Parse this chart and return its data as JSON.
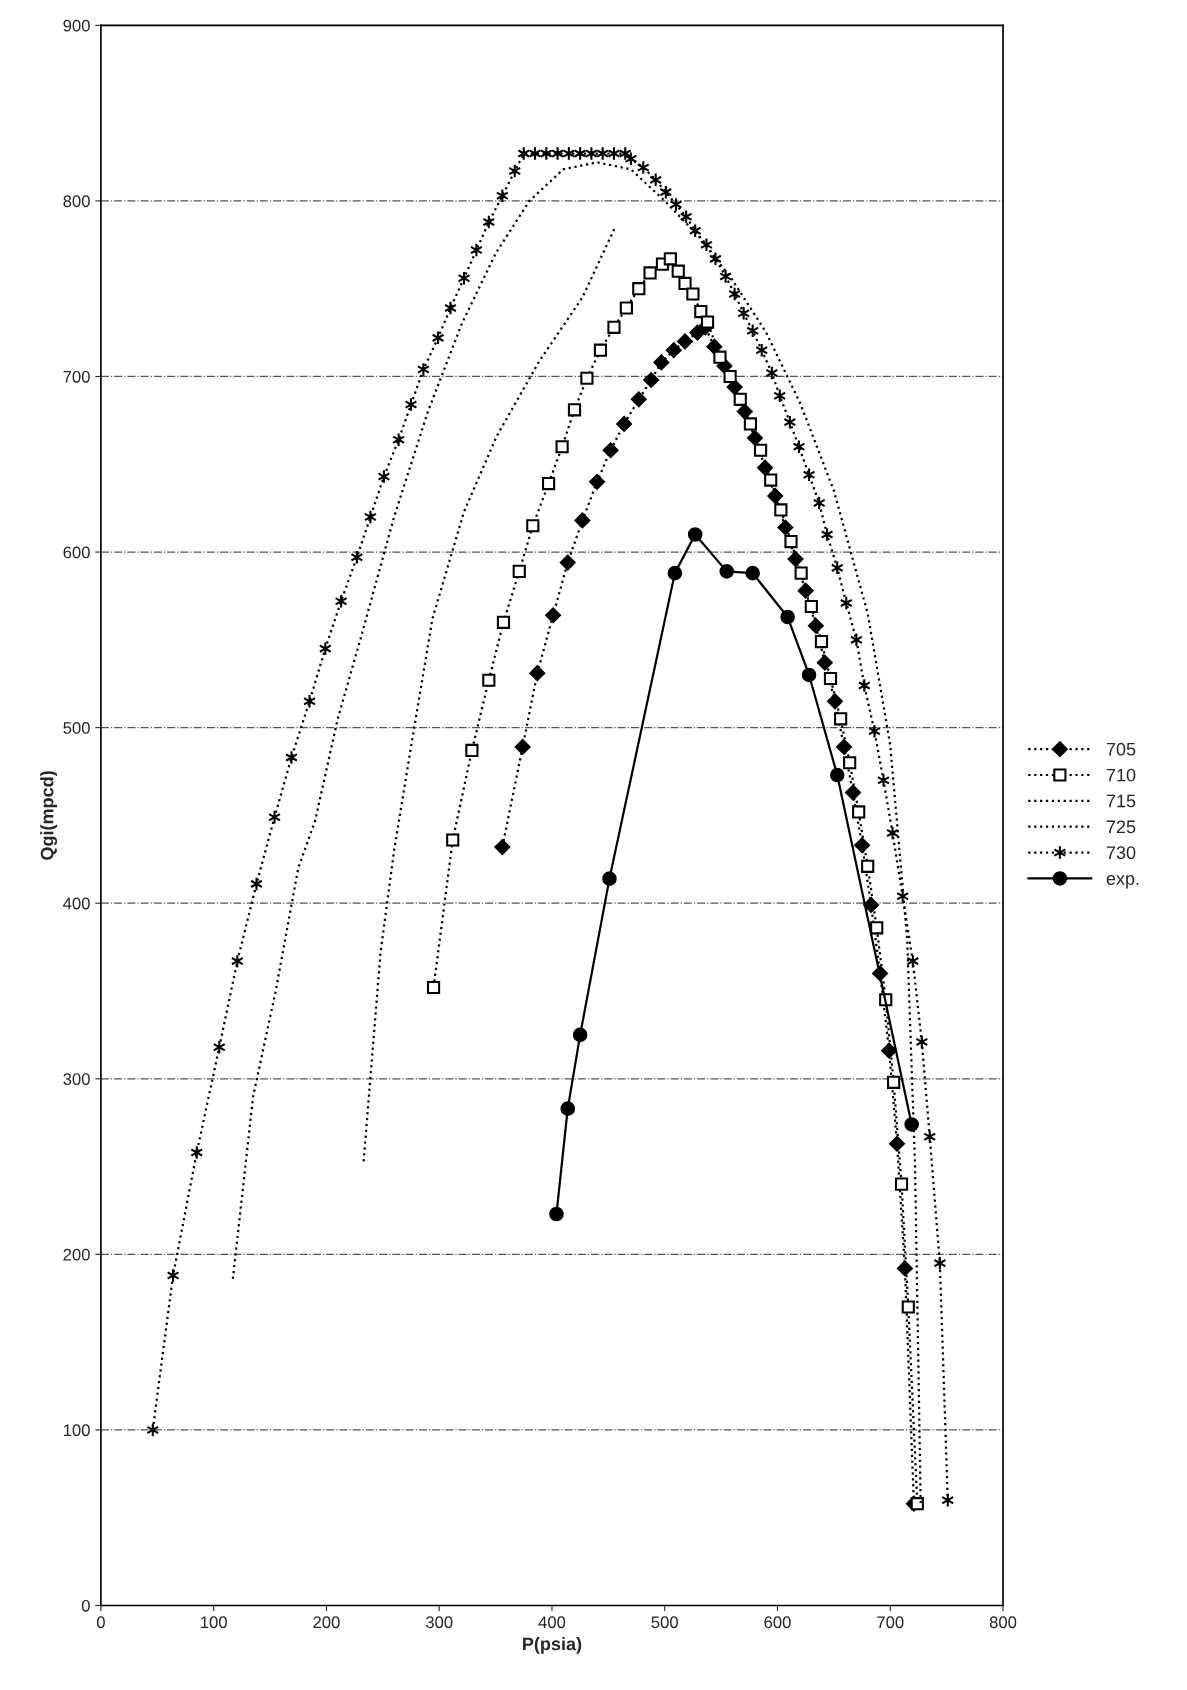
{
  "chart_data": {
    "type": "line",
    "xlabel": "P(psia)",
    "ylabel": "Qgi(mpcd)",
    "xlim": [
      0,
      800
    ],
    "xticks": [
      0,
      100,
      200,
      300,
      400,
      500,
      600,
      700,
      800
    ],
    "ylim": [
      0,
      900
    ],
    "yticks": [
      0,
      100,
      200,
      300,
      400,
      500,
      600,
      700,
      800,
      900
    ],
    "grid": "y",
    "legend": "right",
    "series": [
      {
        "name": "705",
        "color": "#000000",
        "marker": "diamond",
        "line_style": "dotted",
        "x": [
          356,
          374,
          387,
          401,
          414,
          427,
          440,
          452,
          464,
          477,
          488,
          497,
          508,
          518,
          529,
          536,
          544,
          553,
          562,
          571,
          580,
          589,
          598,
          607,
          616,
          625,
          634,
          642,
          651,
          659,
          667,
          675,
          683,
          691,
          699,
          706,
          713,
          721
        ],
        "values": [
          432,
          489,
          531,
          564,
          594,
          618,
          640,
          658,
          673,
          687,
          698,
          708,
          715,
          720,
          725,
          728,
          717,
          706,
          694,
          680,
          665,
          648,
          632,
          614,
          596,
          578,
          558,
          537,
          515,
          489,
          463,
          433,
          399,
          360,
          316,
          263,
          192,
          58
        ]
      },
      {
        "name": "710",
        "color": "#000000",
        "marker": "square",
        "line_style": "dotted",
        "x": [
          295,
          312,
          329,
          344,
          357,
          371,
          383,
          397,
          409,
          420,
          431,
          443,
          455,
          466,
          477,
          487,
          498,
          505,
          512,
          518,
          525,
          532,
          538,
          549,
          558,
          567,
          576,
          585,
          594,
          603,
          612,
          621,
          630,
          639,
          647,
          656,
          664,
          672,
          680,
          688,
          696,
          703,
          710,
          716,
          724
        ],
        "values": [
          352,
          436,
          487,
          527,
          560,
          589,
          615,
          639,
          660,
          681,
          699,
          715,
          728,
          739,
          750,
          759,
          764,
          767,
          760,
          753,
          747,
          737,
          731,
          711,
          700,
          687,
          673,
          658,
          641,
          624,
          606,
          588,
          569,
          549,
          528,
          505,
          480,
          452,
          421,
          386,
          345,
          298,
          240,
          170,
          58
        ]
      },
      {
        "name": "715",
        "color": "#000000",
        "marker": "none",
        "line_style": "dotted",
        "x": [
          233,
          248,
          260,
          275,
          294,
          322,
          351,
          389,
          427,
          456
        ],
        "values": [
          253,
          372,
          430,
          489,
          562,
          623,
          666,
          709,
          745,
          785
        ]
      },
      {
        "name": "725",
        "color": "#000000",
        "marker": "none",
        "line_style": "dotted",
        "x": [
          117,
          135,
          155,
          175,
          190,
          210,
          230,
          260,
          290,
          320,
          350,
          380,
          410,
          440,
          470,
          500,
          530,
          560,
          590,
          620,
          650,
          680,
          700,
          715,
          722,
          727
        ],
        "values": [
          186,
          290,
          350,
          420,
          447,
          505,
          550,
          620,
          680,
          730,
          770,
          800,
          818,
          822,
          818,
          800,
          780,
          755,
          725,
          685,
          635,
          565,
          490,
          380,
          250,
          58
        ]
      },
      {
        "name": "730",
        "color": "#000000",
        "marker": "cross",
        "line_style": "dotted",
        "x": [
          46,
          64,
          85,
          105,
          121,
          138,
          154,
          169,
          185,
          199,
          213,
          227,
          239,
          251,
          264,
          275,
          286,
          299,
          310,
          322,
          333,
          344,
          356,
          367,
          375,
          385,
          395,
          405,
          415,
          425,
          435,
          445,
          455,
          465,
          470,
          481,
          492,
          501,
          510,
          519,
          527,
          537,
          545,
          554,
          562,
          570,
          578,
          586,
          595,
          602,
          611,
          619,
          628,
          637,
          644,
          653,
          661,
          670,
          677,
          686,
          694,
          702,
          711,
          720,
          728,
          735,
          744,
          751
        ],
        "values": [
          100,
          188,
          258,
          318,
          367,
          411,
          449,
          483,
          515,
          545,
          572,
          597,
          620,
          643,
          664,
          684,
          704,
          722,
          739,
          756,
          772,
          788,
          803,
          817,
          827,
          827,
          827,
          827,
          827,
          827,
          827,
          827,
          827,
          827,
          824,
          819,
          812,
          805,
          798,
          791,
          783,
          775,
          767,
          757,
          747,
          736,
          726,
          715,
          702,
          689,
          674,
          660,
          644,
          628,
          610,
          591,
          571,
          550,
          524,
          498,
          470,
          440,
          404,
          367,
          321,
          267,
          195,
          60
        ]
      },
      {
        "name": "exp.",
        "color": "#000000",
        "marker": "circle",
        "line_style": "solid",
        "x": [
          404,
          414,
          425,
          451,
          509,
          527,
          555,
          578,
          609,
          628,
          653,
          719
        ],
        "values": [
          223,
          283,
          325,
          414,
          588,
          610,
          589,
          588,
          563,
          530,
          473,
          274
        ]
      }
    ]
  }
}
